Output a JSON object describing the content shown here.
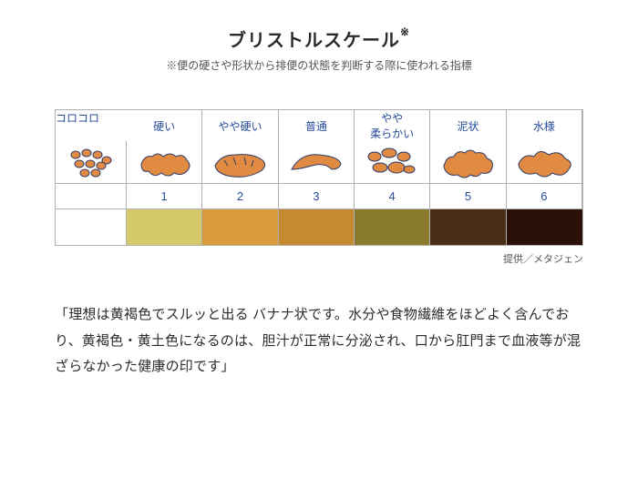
{
  "title": "ブリストルスケール",
  "title_marker": "※",
  "subtitle": "※便の硬さや形状から排便の状態を判断する際に使われる指標",
  "chart": {
    "lead_label": "コロコロ",
    "cell_border_color": "#b0b0b0",
    "text_color": "#274b9a",
    "shape_fill": "#e08a42",
    "shape_stroke": "#2d3a6b",
    "columns": [
      {
        "label": "硬い",
        "num": "1",
        "color": "#d6c96c"
      },
      {
        "label": "やや硬い",
        "num": "2",
        "color": "#d99b3b"
      },
      {
        "label": "普通",
        "num": "3",
        "color": "#c58a2f"
      },
      {
        "label": "やや\n柔らかい",
        "num": "4",
        "color": "#8a7b2e"
      },
      {
        "label": "泥状",
        "num": "5",
        "color": "#4a2d16"
      },
      {
        "label": "水様",
        "num": "6",
        "color": "#2a1006"
      }
    ],
    "row_heights": {
      "labels": 34,
      "shapes": 46,
      "nums": 28,
      "colors": 40
    },
    "shapes": [
      "pellets",
      "lumpy",
      "cracked",
      "smooth",
      "blobs",
      "fluffy",
      "liquid"
    ]
  },
  "credit": "提供／メタジェン",
  "body": "「理想は黄褐色でスルッと出る バナナ状です。水分や食物繊維をほどよく含んでおり、黄褐色・黄土色になるのは、胆汁が正常に分泌され、口から肛門まで血液等が混ざらなかった健康の印です」"
}
